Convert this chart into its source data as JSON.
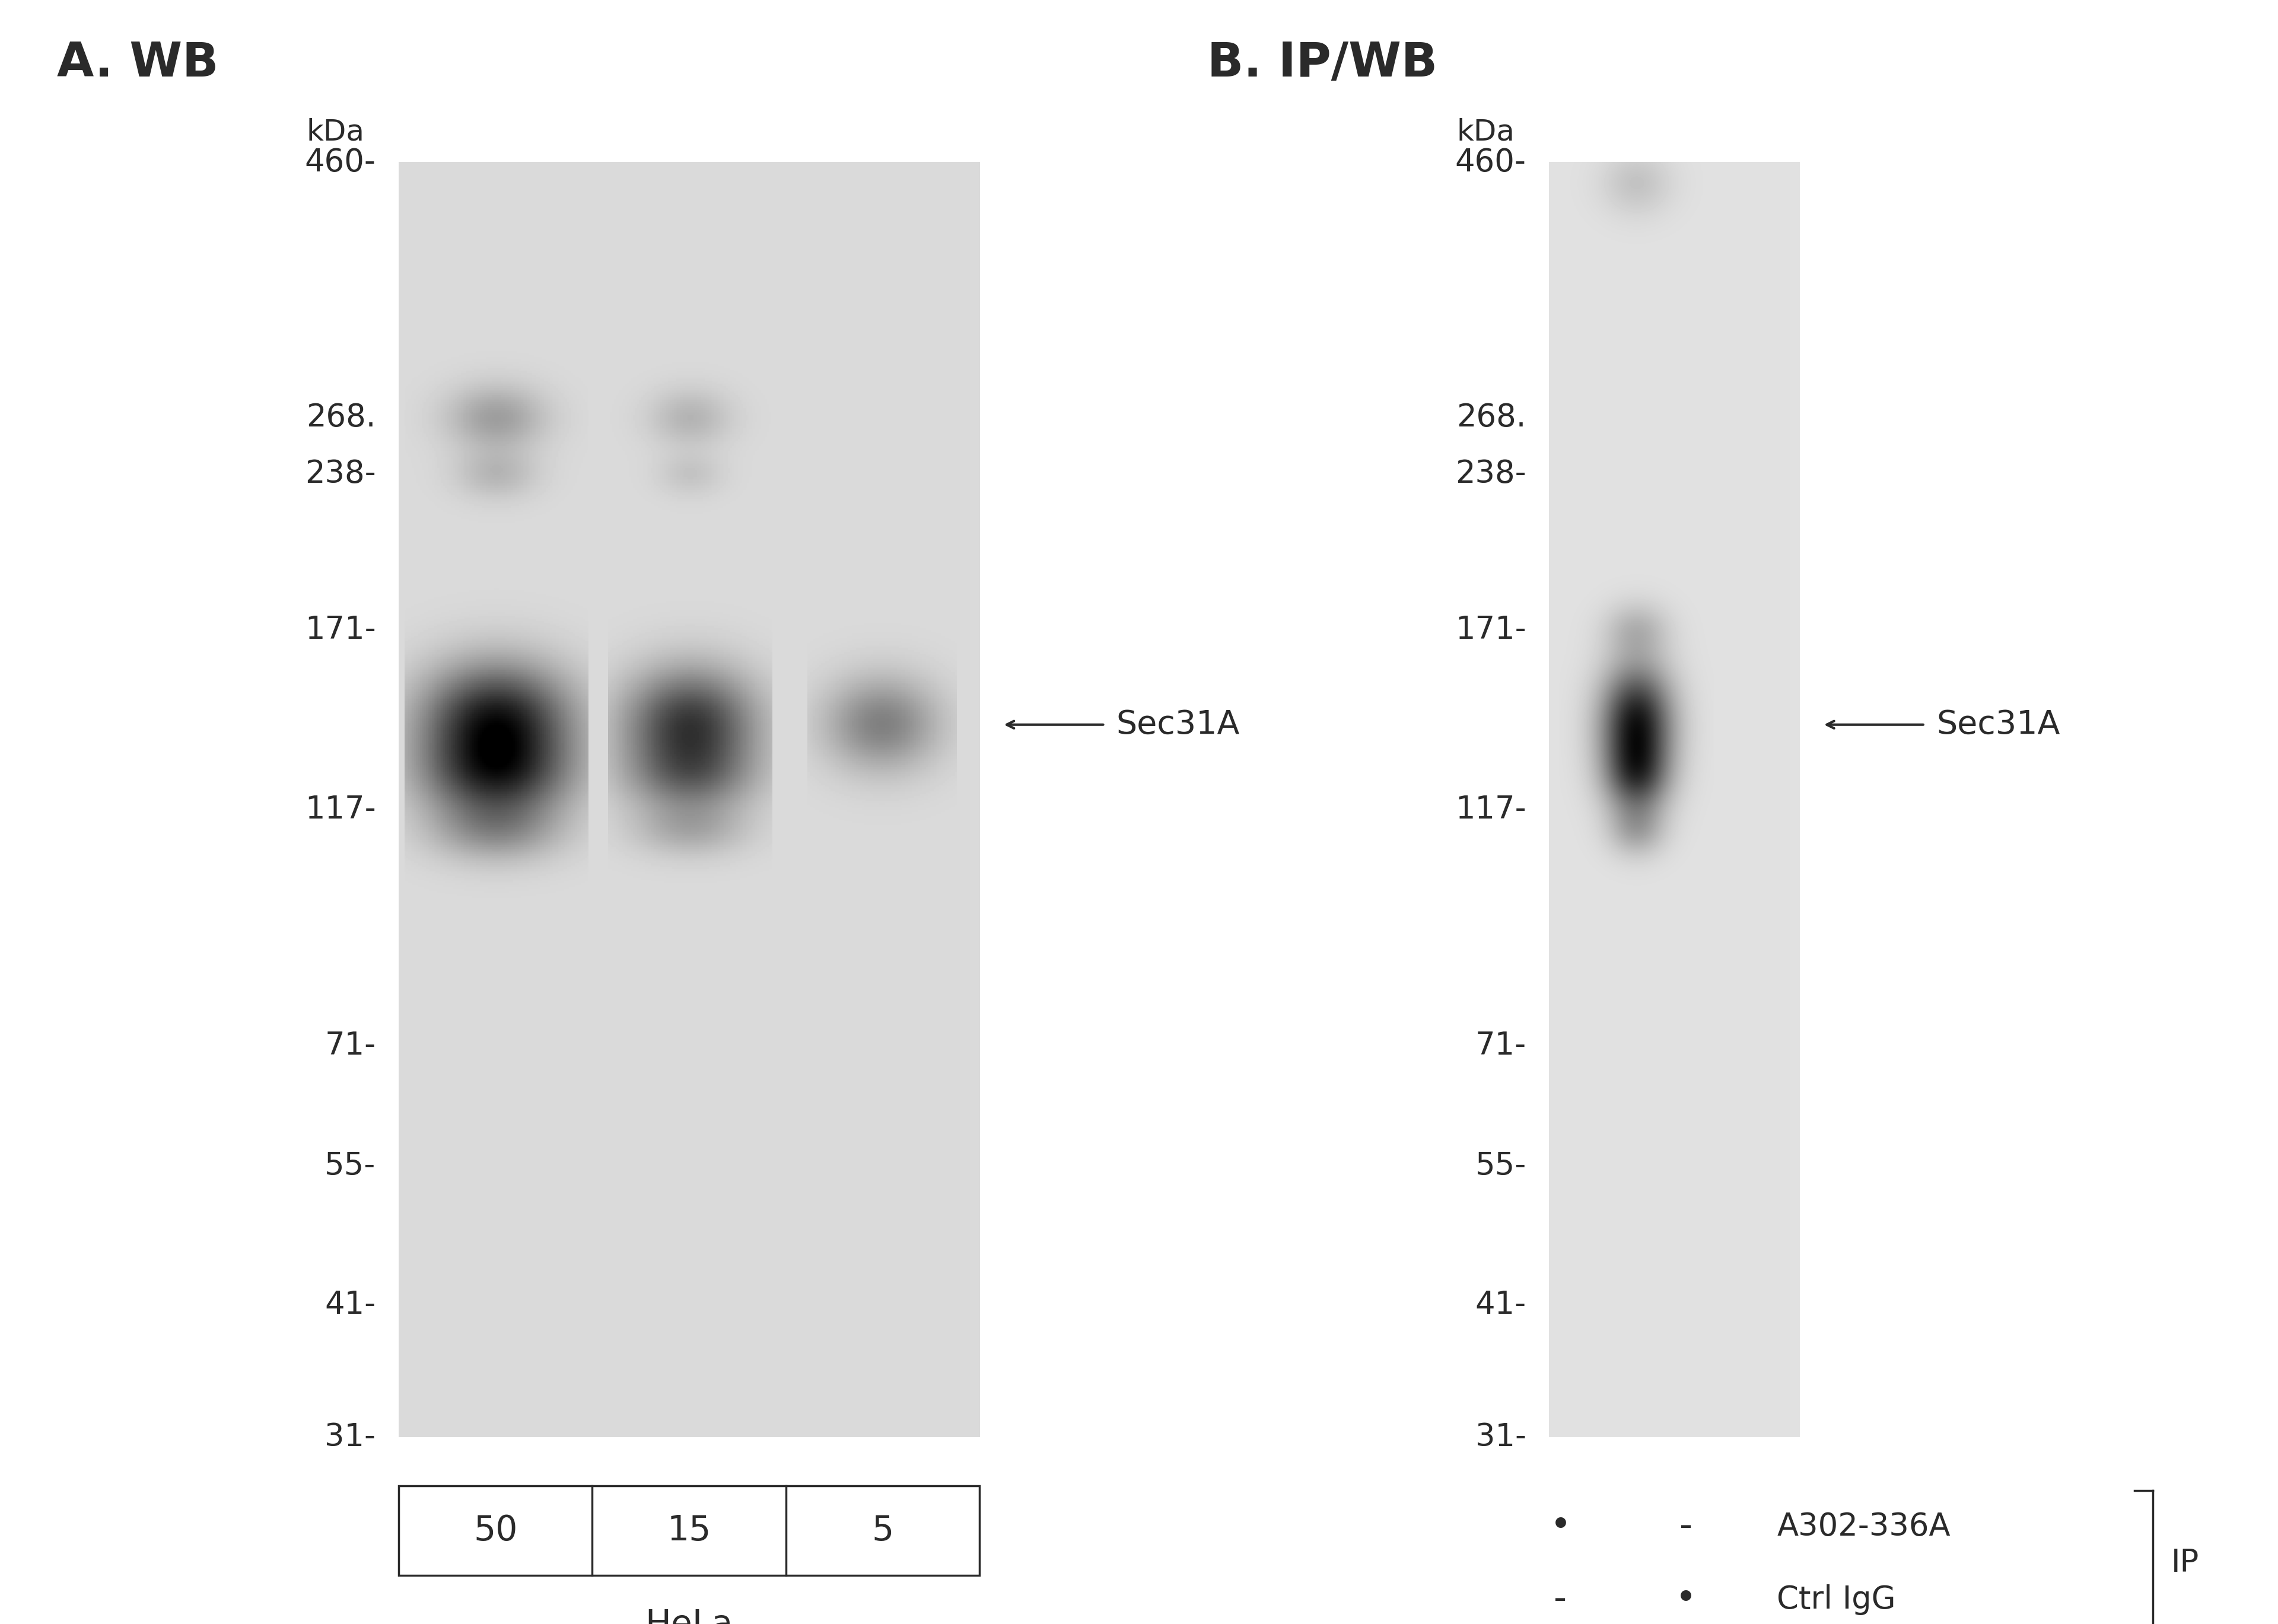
{
  "fig_width": 38.4,
  "fig_height": 27.38,
  "bg_color": "#ffffff",
  "panel_A_title": "A. WB",
  "panel_B_title": "B. IP/WB",
  "kda_label": "kDa",
  "mw_markers": [
    460,
    268,
    238,
    171,
    117,
    71,
    55,
    41,
    31
  ],
  "mw_ticks": [
    "-",
    ".",
    "-",
    "-",
    "-",
    "-",
    "-",
    "-",
    "-"
  ],
  "sec31A_label": "Sec31A",
  "panel_A_lanes": [
    "50",
    "15",
    "5"
  ],
  "panel_A_cell_line": "HeLa",
  "panel_B_dot1": "•",
  "panel_B_dash": "-",
  "panel_B_ab1": "A302-336A",
  "panel_B_ab2": "Ctrl IgG",
  "ip_label": "IP",
  "font_title": 58,
  "font_mw_num": 38,
  "font_mw_kda": 36,
  "font_sec31a": 40,
  "font_lane": 42,
  "font_legend": 38,
  "text_color": "#2a2a2a",
  "gel_color_A": "#d4d4d4",
  "gel_color_B": "#d0d0d0"
}
